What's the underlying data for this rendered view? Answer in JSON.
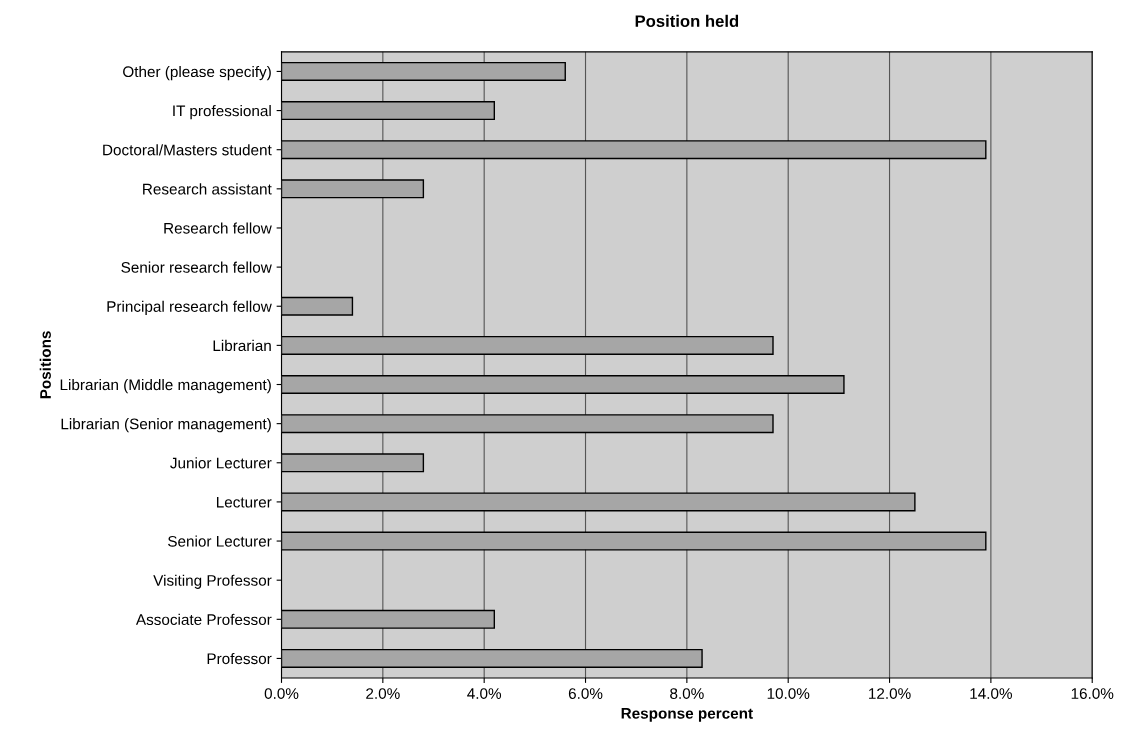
{
  "chart_data": {
    "type": "bar",
    "orientation": "horizontal",
    "title": "Position held",
    "xlabel": "Response percent",
    "ylabel": "Positions",
    "categories": [
      "Other (please specify)",
      "IT professional",
      "Doctoral/Masters student",
      "Research assistant",
      "Research fellow",
      "Senior research fellow",
      "Principal research fellow",
      "Librarian",
      "Librarian (Middle management)",
      "Librarian (Senior management)",
      "Junior Lecturer",
      "Lecturer",
      "Senior Lecturer",
      "Visiting Professor",
      "Associate Professor",
      "Professor"
    ],
    "values": [
      5.6,
      4.2,
      13.9,
      2.8,
      0,
      0,
      1.4,
      9.7,
      11.1,
      9.7,
      2.8,
      12.5,
      13.9,
      0,
      4.2,
      8.3
    ],
    "color": "#a6a6a6",
    "xlim": [
      0,
      16
    ],
    "xticks": [
      {
        "value": 0,
        "label": "0.0%"
      },
      {
        "value": 2,
        "label": "2.0%"
      },
      {
        "value": 4,
        "label": "4.0%"
      },
      {
        "value": 6,
        "label": "6.0%"
      },
      {
        "value": 8,
        "label": "8.0%"
      },
      {
        "value": 10,
        "label": "10.0%"
      },
      {
        "value": 12,
        "label": "12.0%"
      },
      {
        "value": 14,
        "label": "14.0%"
      },
      {
        "value": 16,
        "label": "16.0%"
      }
    ],
    "grid": "x"
  }
}
